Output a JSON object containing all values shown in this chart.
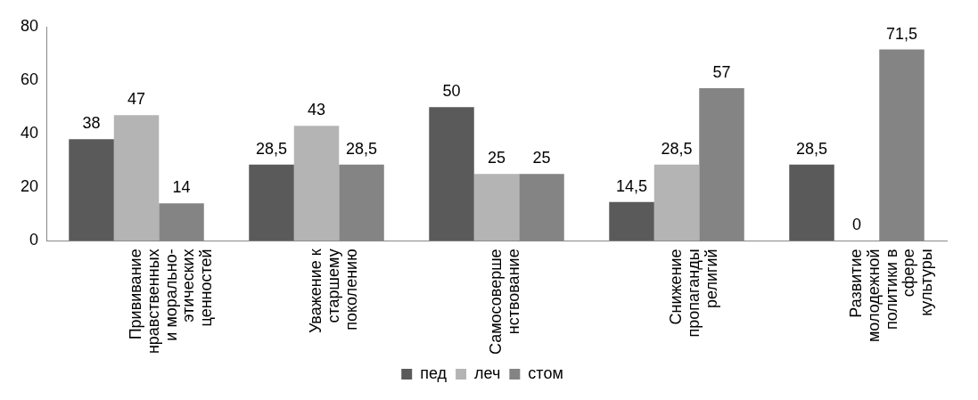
{
  "chart_data": {
    "type": "bar",
    "categories": [
      "Прививание нравственных и морально-этических ценностей",
      "Уважение к старшему поколению",
      "Самосовершенствование",
      "Снижение пропаганды религий",
      "Развитие молодежной политики в сфере культуры"
    ],
    "series": [
      {
        "name": "пед",
        "color": "#5a5a5a",
        "values": [
          38,
          28.5,
          50,
          14.5,
          28.5
        ]
      },
      {
        "name": "леч",
        "color": "#b4b4b4",
        "values": [
          47,
          43,
          25,
          28.5,
          0
        ]
      },
      {
        "name": "стом",
        "color": "#848484",
        "values": [
          14,
          28.5,
          25,
          57,
          71.5
        ]
      }
    ],
    "value_labels": [
      [
        "38",
        "28,5",
        "50",
        "14,5",
        "28,5"
      ],
      [
        "47",
        "43",
        "25",
        "28,5",
        "0"
      ],
      [
        "14",
        "28,5",
        "25",
        "57",
        "71,5"
      ]
    ],
    "ylim": [
      0,
      80
    ],
    "yticks": [
      0,
      20,
      40,
      60,
      80
    ],
    "grid": false,
    "legend": "bottom"
  }
}
